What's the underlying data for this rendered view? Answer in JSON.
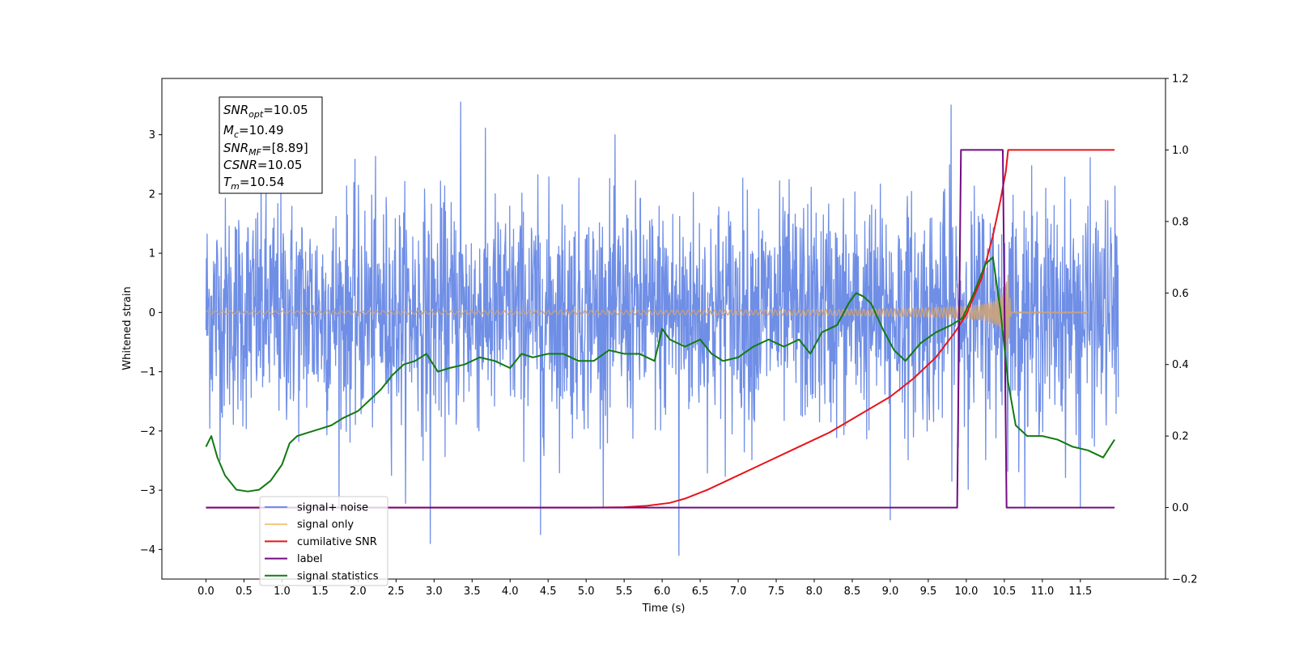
{
  "chart_data": {
    "type": "line",
    "xlabel": "Time (s)",
    "ylabel": "Whitened strain",
    "xlim": [
      -0.58,
      12.62
    ],
    "ylim_left": [
      -4.5,
      3.95
    ],
    "ylim_right": [
      -0.2,
      1.2
    ],
    "x_ticks": [
      0.0,
      0.5,
      1.0,
      1.5,
      2.0,
      2.5,
      3.0,
      3.5,
      4.0,
      4.5,
      5.0,
      5.5,
      6.0,
      6.5,
      7.0,
      7.5,
      8.0,
      8.5,
      9.0,
      9.5,
      10.0,
      10.5,
      11.0,
      11.5
    ],
    "x_tick_labels": [
      "0.0",
      "0.5",
      "1.0",
      "1.5",
      "2.0",
      "2.5",
      "3.0",
      "3.5",
      "4.0",
      "4.5",
      "5.0",
      "5.5",
      "6.0",
      "6.5",
      "7.0",
      "7.5",
      "8.0",
      "8.5",
      "9.0",
      "9.5",
      "10.0",
      "10.5",
      "11.0",
      "11.5"
    ],
    "y_left_ticks": [
      -4,
      -3,
      -2,
      -1,
      0,
      1,
      2,
      3
    ],
    "y_left_tick_labels": [
      "−4",
      "−3",
      "−2",
      "−1",
      "0",
      "1",
      "2",
      "3"
    ],
    "y_right_ticks": [
      -0.2,
      0.0,
      0.2,
      0.4,
      0.6,
      0.8,
      1.0,
      1.2
    ],
    "y_right_tick_labels": [
      "−0.2",
      "0.0",
      "0.2",
      "0.4",
      "0.6",
      "0.8",
      "1.0",
      "1.2"
    ],
    "stats": {
      "snr_opt": "10.05",
      "mc": "10.49",
      "snr_mf": "[8.89]",
      "csnr": "10.05",
      "tm": "10.54"
    },
    "legend": {
      "placement": "lower-left",
      "entries": [
        {
          "label": "signal+ noise",
          "color": "#6f8ee6"
        },
        {
          "label": "signal only",
          "color": "#f5c27a"
        },
        {
          "label": "cumilative SNR",
          "color": "#e8141c"
        },
        {
          "label": "label",
          "color": "#730c82"
        },
        {
          "label": "signal statistics",
          "color": "#127a12"
        }
      ]
    },
    "series": [
      {
        "name": "signal+ noise",
        "axis": "left",
        "color": "#6f8ee6",
        "kind": "noise",
        "x_range": [
          0.0,
          12.0
        ],
        "std": 0.95,
        "peaks": [
          [
            3.35,
            3.55
          ],
          [
            6.22,
            -4.1
          ],
          [
            9.0,
            -3.5
          ],
          [
            2.95,
            -3.9
          ],
          [
            4.4,
            -3.75
          ],
          [
            9.8,
            3.5
          ],
          [
            11.5,
            -3.3
          ]
        ]
      },
      {
        "name": "signal only",
        "axis": "left",
        "color": "#c9a27e",
        "kind": "chirp",
        "x_range": [
          0.0,
          11.6
        ],
        "merger_time": 10.54
      },
      {
        "name": "cumilative SNR",
        "axis": "right",
        "color": "#e8141c",
        "x": [
          0.0,
          5.0,
          5.5,
          5.8,
          6.1,
          6.3,
          6.6,
          6.9,
          7.3,
          7.7,
          8.2,
          8.6,
          9.0,
          9.3,
          9.6,
          9.85,
          10.0,
          10.2,
          10.35,
          10.45,
          10.52,
          10.55,
          11.95
        ],
        "y": [
          0.0,
          0.0,
          0.001,
          0.005,
          0.013,
          0.025,
          0.05,
          0.08,
          0.12,
          0.16,
          0.21,
          0.26,
          0.31,
          0.36,
          0.42,
          0.49,
          0.54,
          0.64,
          0.76,
          0.86,
          0.94,
          1.0,
          1.0
        ]
      },
      {
        "name": "label",
        "axis": "right",
        "color": "#730c82",
        "x": [
          0.0,
          9.88,
          9.93,
          10.48,
          10.53,
          11.95
        ],
        "y": [
          0.0,
          0.0,
          1.0,
          1.0,
          0.0,
          0.0
        ]
      },
      {
        "name": "signal statistics",
        "axis": "right",
        "color": "#127a12",
        "x": [
          0.0,
          0.07,
          0.15,
          0.25,
          0.4,
          0.55,
          0.7,
          0.85,
          1.0,
          1.1,
          1.2,
          1.35,
          1.5,
          1.65,
          1.8,
          2.0,
          2.2,
          2.3,
          2.45,
          2.6,
          2.75,
          2.9,
          3.05,
          3.2,
          3.4,
          3.6,
          3.8,
          4.0,
          4.15,
          4.3,
          4.5,
          4.7,
          4.9,
          5.1,
          5.3,
          5.5,
          5.7,
          5.9,
          6.0,
          6.1,
          6.3,
          6.5,
          6.65,
          6.8,
          7.0,
          7.2,
          7.4,
          7.6,
          7.8,
          7.95,
          8.1,
          8.3,
          8.45,
          8.55,
          8.65,
          8.75,
          8.9,
          9.05,
          9.2,
          9.4,
          9.6,
          9.8,
          9.95,
          10.1,
          10.25,
          10.35,
          10.45,
          10.55,
          10.65,
          10.8,
          11.0,
          11.2,
          11.4,
          11.6,
          11.8,
          11.95
        ],
        "y": [
          0.17,
          0.2,
          0.14,
          0.09,
          0.05,
          0.045,
          0.05,
          0.075,
          0.12,
          0.18,
          0.2,
          0.21,
          0.22,
          0.23,
          0.25,
          0.27,
          0.31,
          0.33,
          0.37,
          0.4,
          0.41,
          0.43,
          0.38,
          0.39,
          0.4,
          0.42,
          0.41,
          0.39,
          0.43,
          0.42,
          0.43,
          0.43,
          0.41,
          0.41,
          0.44,
          0.43,
          0.43,
          0.41,
          0.5,
          0.47,
          0.45,
          0.47,
          0.43,
          0.41,
          0.42,
          0.45,
          0.47,
          0.45,
          0.47,
          0.43,
          0.49,
          0.51,
          0.57,
          0.6,
          0.59,
          0.57,
          0.5,
          0.44,
          0.41,
          0.46,
          0.49,
          0.51,
          0.53,
          0.6,
          0.68,
          0.7,
          0.55,
          0.35,
          0.23,
          0.2,
          0.2,
          0.19,
          0.17,
          0.16,
          0.14,
          0.19
        ]
      }
    ]
  }
}
